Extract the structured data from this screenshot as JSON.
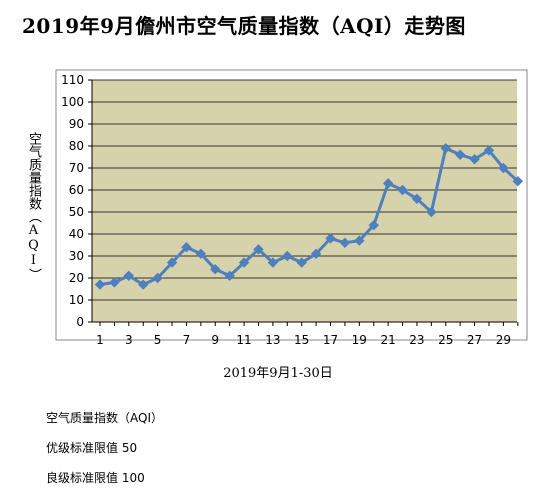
{
  "title": "2019年9月儋州市空气质量指数（AQI）走势图",
  "notes": [
    "空气质量指数（AQI）",
    "优级标准限值 50",
    "良级标准限值 100"
  ],
  "colors": {
    "plot_bg": "#d6d3ac",
    "line": "#4f7fbd",
    "grid": "#000000"
  },
  "chart_data": {
    "type": "line",
    "title": "2019年9月儋州市空气质量指数（AQI）走势图",
    "xlabel": "2019年9月1-30日",
    "ylabel": "空气质量指数（AQI）",
    "ylim": [
      0,
      110
    ],
    "yticks": [
      0,
      10,
      20,
      30,
      40,
      50,
      60,
      70,
      80,
      90,
      100,
      110
    ],
    "x": [
      1,
      2,
      3,
      4,
      5,
      6,
      7,
      8,
      9,
      10,
      11,
      12,
      13,
      14,
      15,
      16,
      17,
      18,
      19,
      20,
      21,
      22,
      23,
      24,
      25,
      26,
      27,
      28,
      29,
      30
    ],
    "xtick_labels": [
      "1",
      "3",
      "5",
      "7",
      "9",
      "11",
      "13",
      "15",
      "17",
      "19",
      "21",
      "23",
      "25",
      "27",
      "29"
    ],
    "grid": true,
    "legend": "none",
    "series": [
      {
        "values": [
          17,
          18,
          21,
          17,
          20,
          27,
          34,
          31,
          24,
          21,
          27,
          33,
          27,
          30,
          27,
          31,
          38,
          36,
          37,
          44,
          63,
          60,
          56,
          50,
          79,
          76,
          74,
          78,
          70,
          64
        ]
      }
    ]
  }
}
